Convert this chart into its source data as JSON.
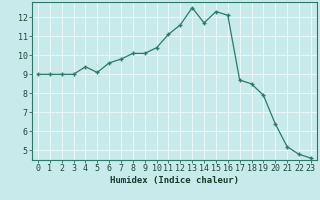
{
  "x": [
    0,
    1,
    2,
    3,
    4,
    5,
    6,
    7,
    8,
    9,
    10,
    11,
    12,
    13,
    14,
    15,
    16,
    17,
    18,
    19,
    20,
    21,
    22,
    23
  ],
  "y": [
    9.0,
    9.0,
    9.0,
    9.0,
    9.4,
    9.1,
    9.6,
    9.8,
    10.1,
    10.1,
    10.4,
    11.1,
    11.6,
    12.5,
    11.7,
    12.3,
    12.1,
    8.7,
    8.5,
    7.9,
    6.4,
    5.2,
    4.8,
    4.6
  ],
  "xlabel": "Humidex (Indice chaleur)",
  "ylim": [
    4.5,
    12.8
  ],
  "xlim": [
    -0.5,
    23.5
  ],
  "yticks": [
    5,
    6,
    7,
    8,
    9,
    10,
    11,
    12
  ],
  "xticks": [
    0,
    1,
    2,
    3,
    4,
    5,
    6,
    7,
    8,
    9,
    10,
    11,
    12,
    13,
    14,
    15,
    16,
    17,
    18,
    19,
    20,
    21,
    22,
    23
  ],
  "line_color": "#2d7a6a",
  "marker_color": "#2d7a6a",
  "bg_color": "#c8eaea",
  "grid_color": "#e8f8f8",
  "axes_edge_color": "#2d7a6a",
  "tick_label_color": "#1a4a3a",
  "xlabel_color": "#1a3a2a",
  "font_family": "monospace",
  "label_fontsize": 6.5,
  "tick_fontsize": 6.0
}
